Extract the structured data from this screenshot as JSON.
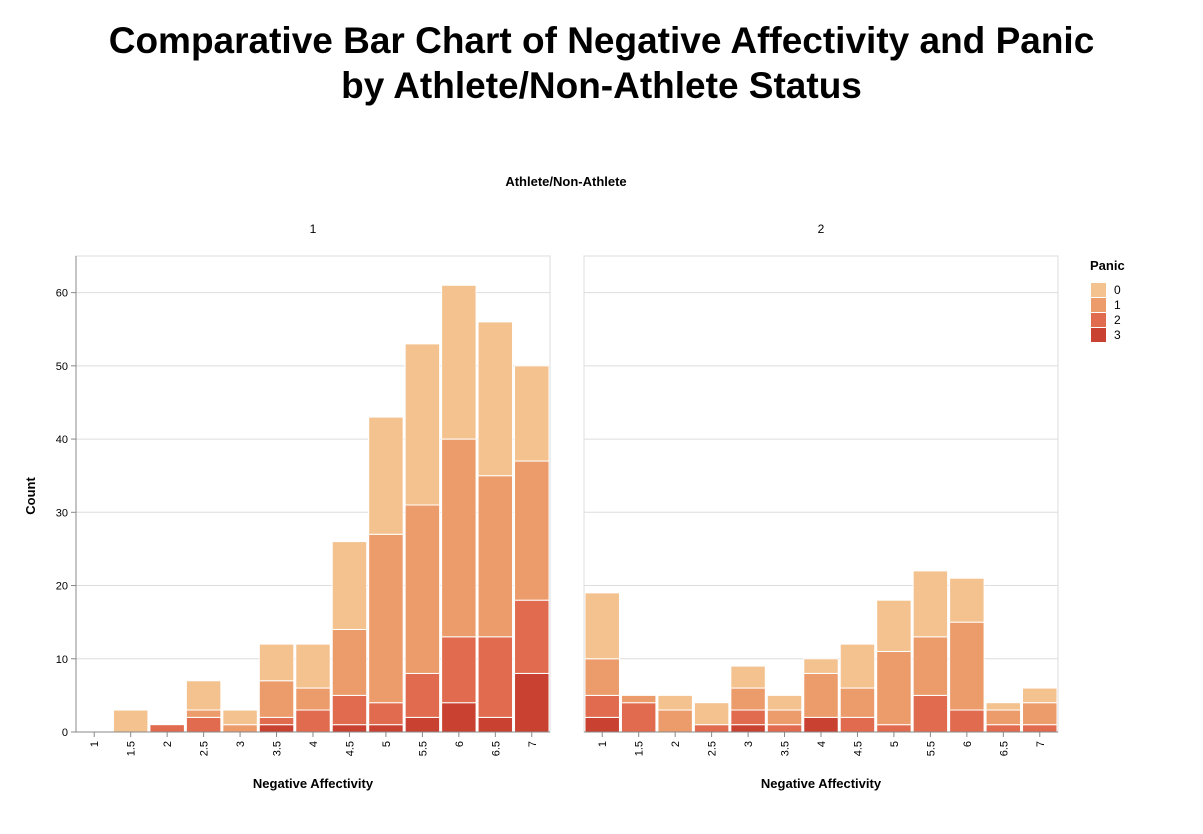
{
  "title_line1": "Comparative Bar Chart of Negative Affectivity and Panic",
  "title_line2": "by Athlete/Non-Athlete Status",
  "chart_data": {
    "type": "bar",
    "stacked": true,
    "facet_title": "Athlete/Non-Athlete",
    "xlabel": "Negative Affectivity",
    "ylabel": "Count",
    "ylim": [
      0,
      65
    ],
    "yticks": [
      0,
      10,
      20,
      30,
      40,
      50,
      60
    ],
    "grid": true,
    "legend_title": "Panic",
    "legend_position": "right",
    "categories": [
      "1",
      "1.5",
      "2",
      "2.5",
      "3",
      "3.5",
      "4",
      "4.5",
      "5",
      "5.5",
      "6",
      "6.5",
      "7"
    ],
    "series_keys": [
      "0",
      "1",
      "2",
      "3"
    ],
    "colors": [
      "#f3c28f",
      "#ec9b6a",
      "#e06b4f",
      "#c94131"
    ],
    "panels": [
      {
        "label": "1",
        "series": [
          {
            "name": "0",
            "values": [
              0,
              3,
              0,
              4,
              2,
              5,
              6,
              12,
              16,
              22,
              21,
              21,
              13
            ]
          },
          {
            "name": "1",
            "values": [
              0,
              0,
              0,
              1,
              1,
              5,
              3,
              9,
              23,
              23,
              27,
              22,
              19
            ]
          },
          {
            "name": "2",
            "values": [
              0,
              0,
              1,
              2,
              0,
              1,
              3,
              4,
              3,
              6,
              9,
              11,
              10
            ]
          },
          {
            "name": "3",
            "values": [
              0,
              0,
              0,
              0,
              0,
              1,
              0,
              1,
              1,
              2,
              4,
              2,
              8
            ]
          }
        ]
      },
      {
        "label": "2",
        "series": [
          {
            "name": "0",
            "values": [
              9,
              0,
              2,
              3,
              3,
              2,
              2,
              6,
              7,
              9,
              6,
              1,
              2
            ]
          },
          {
            "name": "1",
            "values": [
              5,
              1,
              3,
              0,
              3,
              2,
              6,
              4,
              10,
              8,
              12,
              2,
              3
            ]
          },
          {
            "name": "2",
            "values": [
              3,
              4,
              0,
              1,
              2,
              1,
              0,
              2,
              1,
              5,
              3,
              1,
              1
            ]
          },
          {
            "name": "3",
            "values": [
              2,
              0,
              0,
              0,
              1,
              0,
              2,
              0,
              0,
              0,
              0,
              0,
              0
            ]
          }
        ]
      }
    ]
  }
}
